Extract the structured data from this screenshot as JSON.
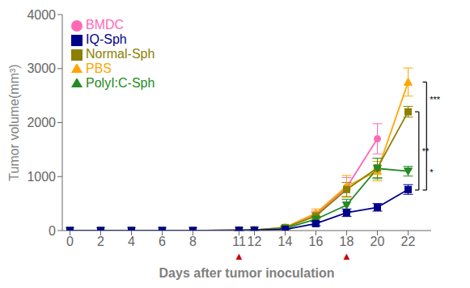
{
  "chart_data": {
    "type": "line",
    "xlabel": "Days after tumor inoculation",
    "ylabel": "Tumor volume(mm³)",
    "x": [
      0,
      2,
      4,
      6,
      8,
      11,
      12,
      14,
      16,
      18,
      20,
      22
    ],
    "series": [
      {
        "name": "BMDC",
        "color": "#FF69B4",
        "marker": "circle",
        "values": [
          0,
          0,
          0,
          0,
          0,
          5,
          10,
          50,
          300,
          800,
          1700,
          null
        ],
        "errors": [
          0,
          0,
          0,
          0,
          0,
          3,
          5,
          20,
          60,
          180,
          280,
          null
        ]
      },
      {
        "name": "PBS",
        "color": "#FFA500",
        "marker": "triangle-up",
        "values": [
          0,
          0,
          0,
          0,
          0,
          5,
          10,
          60,
          320,
          820,
          1100,
          2750
        ],
        "errors": [
          0,
          0,
          0,
          0,
          0,
          3,
          5,
          25,
          80,
          200,
          180,
          260
        ]
      },
      {
        "name": "Normal-Sph",
        "color": "#8B8000",
        "marker": "square",
        "values": [
          0,
          0,
          0,
          0,
          0,
          5,
          10,
          55,
          270,
          760,
          1160,
          2200
        ],
        "errors": [
          0,
          0,
          0,
          0,
          0,
          3,
          5,
          20,
          60,
          130,
          180,
          100
        ]
      },
      {
        "name": "PolyI:C-Sph",
        "color": "#228B22",
        "marker": "triangle-down",
        "values": [
          0,
          0,
          0,
          0,
          0,
          5,
          8,
          40,
          210,
          470,
          1150,
          1100
        ],
        "errors": [
          0,
          0,
          0,
          0,
          0,
          3,
          4,
          18,
          55,
          110,
          190,
          90
        ]
      },
      {
        "name": "IQ-Sph",
        "color": "#00008B",
        "marker": "square",
        "values": [
          0,
          0,
          0,
          0,
          0,
          5,
          8,
          20,
          130,
          330,
          430,
          760
        ],
        "errors": [
          0,
          0,
          0,
          0,
          0,
          2,
          3,
          10,
          40,
          70,
          70,
          90
        ]
      }
    ],
    "xlim": [
      -0.5,
      23.5
    ],
    "xticks": [
      0,
      2,
      4,
      6,
      8,
      11,
      12,
      14,
      16,
      18,
      20,
      22
    ],
    "ylim": [
      0,
      4000
    ],
    "yticks": [
      0,
      1000,
      2000,
      3000,
      4000
    ],
    "grid": false,
    "legend": "upper left",
    "annotations": [
      {
        "text": "▲",
        "x": 11,
        "color": "#CC0000"
      },
      {
        "text": "▲",
        "x": 18,
        "color": "#CC0000"
      },
      {
        "texts": [
          "**"
        ],
        "y": [
          750,
          2200
        ]
      },
      {
        "texts": [
          "***",
          "*"
        ],
        "y": [
          750,
          2750
        ]
      }
    ]
  }
}
